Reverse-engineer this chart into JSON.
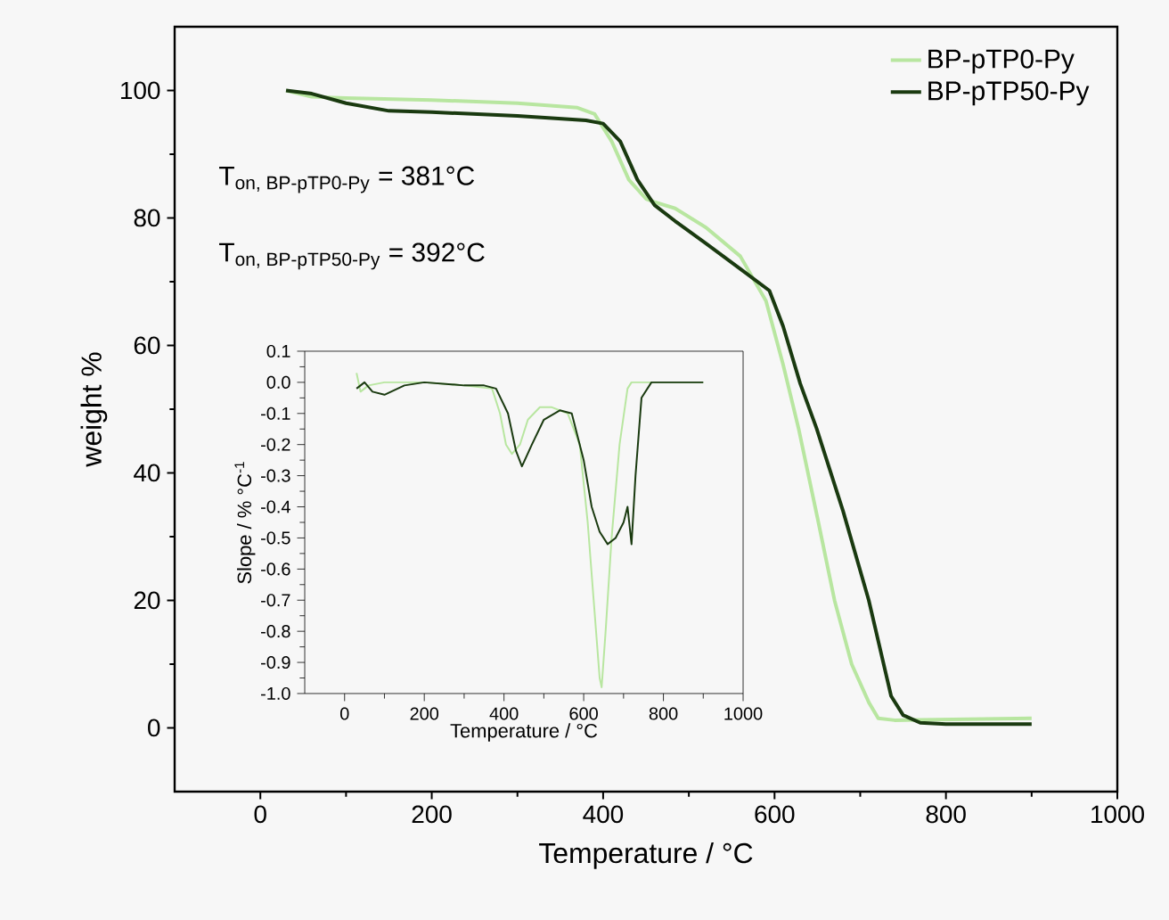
{
  "chart_data": [
    {
      "type": "line",
      "xlabel": "Temperature / °C",
      "ylabel": "weight %",
      "xlim": [
        -100,
        1000
      ],
      "ylim": [
        -10,
        110
      ],
      "xticks": [
        0,
        200,
        400,
        600,
        800,
        1000
      ],
      "yticks": [
        0,
        20,
        40,
        60,
        80,
        100
      ],
      "legend": "top right",
      "grid": false,
      "marker": "none",
      "line_style": "solid",
      "annotations": [
        "\\text{T}_{\\text{on, BP-pTP0-Py}}\\text{ = 381°C}",
        "\\text{T}_{\\text{on, BP-pTP50-Py}}\\text{ = 392°C}"
      ],
      "series": [
        {
          "name": "BP-pTP0-Py",
          "color": "#b8e6a0",
          "x": [
            30,
            60,
            100,
            200,
            300,
            370,
            390,
            410,
            430,
            450,
            460,
            484,
            520,
            560,
            590,
            610,
            628,
            650,
            670,
            690,
            710,
            721,
            740,
            900
          ],
          "values": [
            100,
            99,
            98.8,
            98.5,
            98,
            97.3,
            96.3,
            92,
            86,
            83,
            82.5,
            81.5,
            78.5,
            74,
            67,
            57,
            47,
            33,
            20,
            10,
            4,
            1.5,
            1.2,
            1.5
          ]
        },
        {
          "name": "BP-pTP50-Py",
          "color": "#1a3a10",
          "x": [
            30,
            60,
            100,
            150,
            200,
            300,
            380,
            400,
            420,
            440,
            460,
            484,
            520,
            560,
            594,
            610,
            630,
            649,
            680,
            710,
            736,
            750,
            770,
            800,
            900
          ],
          "values": [
            100,
            99.5,
            98,
            96.8,
            96.6,
            96,
            95.3,
            94.8,
            92,
            86,
            82,
            79.5,
            76,
            72,
            68.6,
            63,
            54,
            47,
            34,
            20,
            5,
            2,
            0.8,
            0.6,
            0.6
          ]
        }
      ]
    },
    {
      "type": "line",
      "xlabel": "Temperature / °C",
      "ylabel": "Slope / % °C$^{-1}$",
      "xlim": [
        -100,
        1000
      ],
      "ylim": [
        -1.0,
        0.1
      ],
      "xticks": [
        0,
        200,
        400,
        600,
        800,
        1000
      ],
      "yticks": [
        {
          "value": 0.1,
          "label": "0.1"
        },
        {
          "value": 0.0,
          "label": "0.0"
        },
        -0.1,
        -0.2,
        -0.3,
        -0.4,
        -0.5,
        -0.6,
        -0.7,
        -0.8,
        -0.9,
        {
          "value": -1.0,
          "label": "-1.0"
        }
      ],
      "grid": false,
      "marker": "none",
      "line_style": "solid",
      "series": [
        {
          "color": "#b8e6a0",
          "x": [
            30,
            40,
            60,
            100,
            200,
            300,
            370,
            390,
            405,
            420,
            440,
            460,
            490,
            520,
            560,
            590,
            610,
            625,
            640,
            645,
            655,
            670,
            690,
            710,
            720,
            900
          ],
          "values": [
            0.03,
            -0.03,
            -0.01,
            0.0,
            0.0,
            -0.01,
            -0.02,
            -0.1,
            -0.2,
            -0.23,
            -0.2,
            -0.12,
            -0.08,
            -0.08,
            -0.1,
            -0.2,
            -0.45,
            -0.7,
            -0.95,
            -0.98,
            -0.8,
            -0.5,
            -0.2,
            -0.02,
            0.0,
            0.0
          ]
        },
        {
          "color": "#1a3a10",
          "x": [
            30,
            50,
            70,
            100,
            150,
            200,
            300,
            350,
            380,
            410,
            430,
            445,
            470,
            500,
            540,
            570,
            600,
            620,
            640,
            660,
            680,
            700,
            710,
            720,
            730,
            745,
            770,
            900
          ],
          "values": [
            -0.02,
            0.0,
            -0.03,
            -0.04,
            -0.01,
            0.0,
            -0.01,
            -0.01,
            -0.02,
            -0.1,
            -0.22,
            -0.27,
            -0.2,
            -0.12,
            -0.09,
            -0.1,
            -0.25,
            -0.4,
            -0.48,
            -0.52,
            -0.5,
            -0.45,
            -0.4,
            -0.52,
            -0.3,
            -0.05,
            0.0,
            0.0
          ]
        }
      ]
    }
  ]
}
